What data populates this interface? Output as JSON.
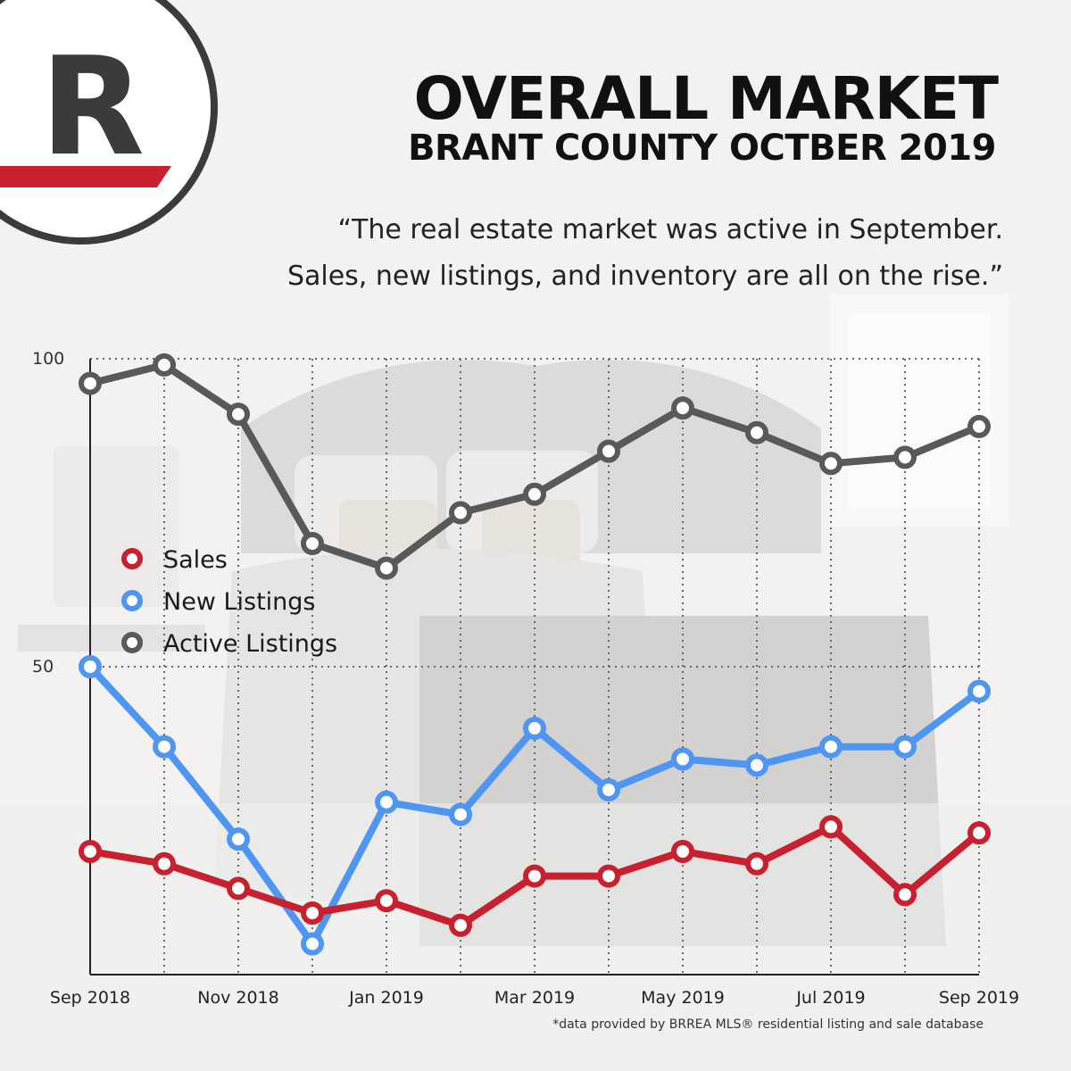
{
  "brand": {
    "logo_letter": "R",
    "accent": "#c8202f",
    "dark": "#3b3b3b"
  },
  "header": {
    "title": "OVERALL MARKET",
    "subtitle": "BRANT COUNTY OCTBER 2019",
    "quote_line1": "“The real estate market was active in September.",
    "quote_line2": "Sales, new listings, and inventory are all on the rise.”"
  },
  "footnote": "*data provided by BRREA MLS® residential listing and sale database",
  "chart_data": {
    "type": "line",
    "x": [
      "Sep 2018",
      "Oct 2018",
      "Nov 2018",
      "Dec 2018",
      "Jan 2019",
      "Feb 2019",
      "Mar 2019",
      "Apr 2019",
      "May 2019",
      "Jun 2019",
      "Jul 2019",
      "Aug 2019",
      "Sep 2019"
    ],
    "x_tick_labels": [
      "Sep 2018",
      "",
      "Nov 2018",
      "",
      "Jan 2019",
      "",
      "Mar 2019",
      "",
      "May 2019",
      "",
      "Jul 2019",
      "",
      "Sep 2019"
    ],
    "y_tick_labels": [
      "100",
      "50"
    ],
    "ylim": [
      0,
      100
    ],
    "grid": true,
    "legend_position": "left",
    "series": [
      {
        "name": "Sales",
        "color": "#c8202f",
        "values": [
          20,
          18,
          14,
          10,
          12,
          8,
          16,
          16,
          20,
          18,
          24,
          13,
          23
        ]
      },
      {
        "name": "New Listings",
        "color": "#4f95f2",
        "values": [
          50,
          37,
          22,
          5,
          28,
          26,
          40,
          30,
          35,
          34,
          37,
          37,
          46
        ]
      },
      {
        "name": "Active Listings",
        "color": "#595959",
        "values": [
          96,
          99,
          91,
          70,
          66,
          75,
          78,
          85,
          92,
          88,
          83,
          84,
          89
        ]
      }
    ]
  }
}
